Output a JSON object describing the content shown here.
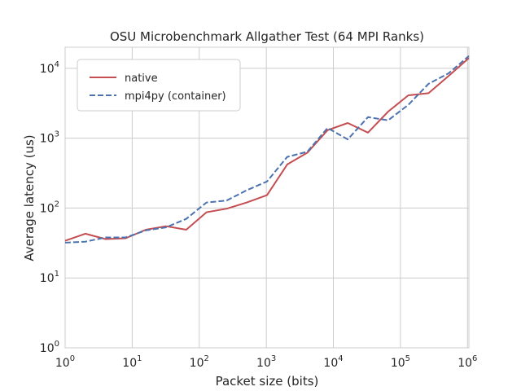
{
  "chart_data": {
    "type": "line",
    "title": "OSU Microbenchmark Allgather Test (64 MPI Ranks)",
    "xlabel": "Packet size (bits)",
    "ylabel": "Average latency (us)",
    "x_scale": "log",
    "y_scale": "log",
    "xlim": [
      1,
      1048576
    ],
    "ylim": [
      1,
      20000
    ],
    "x_ticks": [
      {
        "value": 1,
        "base": "10",
        "exp": "0"
      },
      {
        "value": 10,
        "base": "10",
        "exp": "1"
      },
      {
        "value": 100,
        "base": "10",
        "exp": "2"
      },
      {
        "value": 1000,
        "base": "10",
        "exp": "3"
      },
      {
        "value": 10000,
        "base": "10",
        "exp": "4"
      },
      {
        "value": 100000,
        "base": "10",
        "exp": "5"
      },
      {
        "value": 1000000,
        "base": "10",
        "exp": "6"
      }
    ],
    "y_ticks": [
      {
        "value": 1,
        "base": "10",
        "exp": "0"
      },
      {
        "value": 10,
        "base": "10",
        "exp": "1"
      },
      {
        "value": 100,
        "base": "10",
        "exp": "2"
      },
      {
        "value": 1000,
        "base": "10",
        "exp": "3"
      },
      {
        "value": 10000,
        "base": "10",
        "exp": "4"
      }
    ],
    "grid": true,
    "legend_position": "top-left",
    "x": [
      1,
      2,
      4,
      8,
      16,
      32,
      64,
      128,
      256,
      512,
      1024,
      2048,
      4096,
      8192,
      16384,
      32768,
      65536,
      131072,
      262144,
      524288,
      1048576
    ],
    "series": [
      {
        "name": "native",
        "color": "#c44e52",
        "dash": "solid",
        "values": [
          34,
          43,
          36,
          37,
          49,
          55,
          49,
          87,
          98,
          120,
          153,
          420,
          620,
          1300,
          1650,
          1200,
          2400,
          4100,
          4400,
          7800,
          14000
        ]
      },
      {
        "name": "mpi4py (container)",
        "color": "#4c72b0",
        "dash": "dashed",
        "values": [
          32,
          33,
          38,
          38,
          48,
          53,
          70,
          120,
          128,
          180,
          240,
          540,
          640,
          1400,
          960,
          2000,
          1800,
          3000,
          6000,
          8500,
          15000
        ]
      }
    ]
  }
}
